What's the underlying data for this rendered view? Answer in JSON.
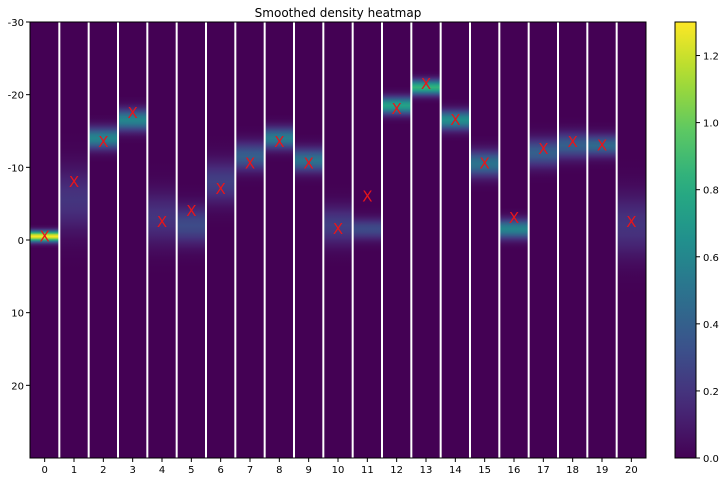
{
  "chart_data": {
    "type": "heatmap",
    "title": "Smoothed density heatmap",
    "xlabel": "",
    "ylabel": "",
    "columns": [
      0,
      1,
      2,
      3,
      4,
      5,
      6,
      7,
      8,
      9,
      10,
      11,
      12,
      13,
      14,
      15,
      16,
      17,
      18,
      19,
      20
    ],
    "x_tick_labels": [
      "0",
      "1",
      "2",
      "3",
      "4",
      "5",
      "6",
      "7",
      "8",
      "9",
      "10",
      "11",
      "12",
      "13",
      "14",
      "15",
      "16",
      "17",
      "18",
      "19",
      "20"
    ],
    "ylim": [
      30,
      -30
    ],
    "y_ticks": [
      -30,
      -20,
      -10,
      0,
      10,
      20
    ],
    "y_tick_labels": [
      "-30",
      "-20",
      "-10",
      "0",
      "10",
      "20"
    ],
    "y_inverted": true,
    "density_peaks": [
      {
        "col": 0,
        "center": -0.5,
        "spread": 0.5,
        "peak": 1.3
      },
      {
        "col": 1,
        "center": -5.5,
        "spread": 3.0,
        "peak": 0.2
      },
      {
        "col": 2,
        "center": -14.0,
        "spread": 1.0,
        "peak": 0.6
      },
      {
        "col": 3,
        "center": -16.5,
        "spread": 1.0,
        "peak": 0.6
      },
      {
        "col": 4,
        "center": -3.0,
        "spread": 2.5,
        "peak": 0.2
      },
      {
        "col": 5,
        "center": -2.0,
        "spread": 1.8,
        "peak": 0.3
      },
      {
        "col": 6,
        "center": -8.0,
        "spread": 2.0,
        "peak": 0.25
      },
      {
        "col": 7,
        "center": -11.5,
        "spread": 1.3,
        "peak": 0.4
      },
      {
        "col": 8,
        "center": -14.0,
        "spread": 1.0,
        "peak": 0.55
      },
      {
        "col": 9,
        "center": -11.0,
        "spread": 1.1,
        "peak": 0.5
      },
      {
        "col": 10,
        "center": -2.0,
        "spread": 1.8,
        "peak": 0.25
      },
      {
        "col": 11,
        "center": -1.5,
        "spread": 1.0,
        "peak": 0.3
      },
      {
        "col": 12,
        "center": -18.5,
        "spread": 0.8,
        "peak": 0.75
      },
      {
        "col": 13,
        "center": -21.0,
        "spread": 0.7,
        "peak": 0.85
      },
      {
        "col": 14,
        "center": -16.5,
        "spread": 0.9,
        "peak": 0.65
      },
      {
        "col": 15,
        "center": -10.5,
        "spread": 1.2,
        "peak": 0.5
      },
      {
        "col": 16,
        "center": -1.5,
        "spread": 0.9,
        "peak": 0.6
      },
      {
        "col": 17,
        "center": -12.0,
        "spread": 1.3,
        "peak": 0.4
      },
      {
        "col": 18,
        "center": -13.0,
        "spread": 1.2,
        "peak": 0.4
      },
      {
        "col": 19,
        "center": -13.0,
        "spread": 1.0,
        "peak": 0.45
      },
      {
        "col": 20,
        "center": -2.0,
        "spread": 3.0,
        "peak": 0.2
      }
    ],
    "markers": {
      "symbol": "X",
      "color": "#e8151b",
      "y": [
        -0.5,
        -8.0,
        -13.5,
        -17.5,
        -2.5,
        -4.0,
        -7.0,
        -10.5,
        -13.5,
        -10.5,
        -1.5,
        -6.0,
        -18.0,
        -21.5,
        -16.5,
        -10.5,
        -3.0,
        -12.5,
        -13.5,
        -13.0,
        -2.5
      ]
    },
    "colorbar": {
      "colormap": "viridis",
      "range": [
        0.0,
        1.3
      ],
      "ticks": [
        0.0,
        0.2,
        0.4,
        0.6,
        0.8,
        1.0,
        1.2
      ],
      "tick_labels": [
        "0.0",
        "0.2",
        "0.4",
        "0.6",
        "0.8",
        "1.0",
        "1.2"
      ]
    },
    "separator_color": "#ffffff",
    "grid": false
  }
}
